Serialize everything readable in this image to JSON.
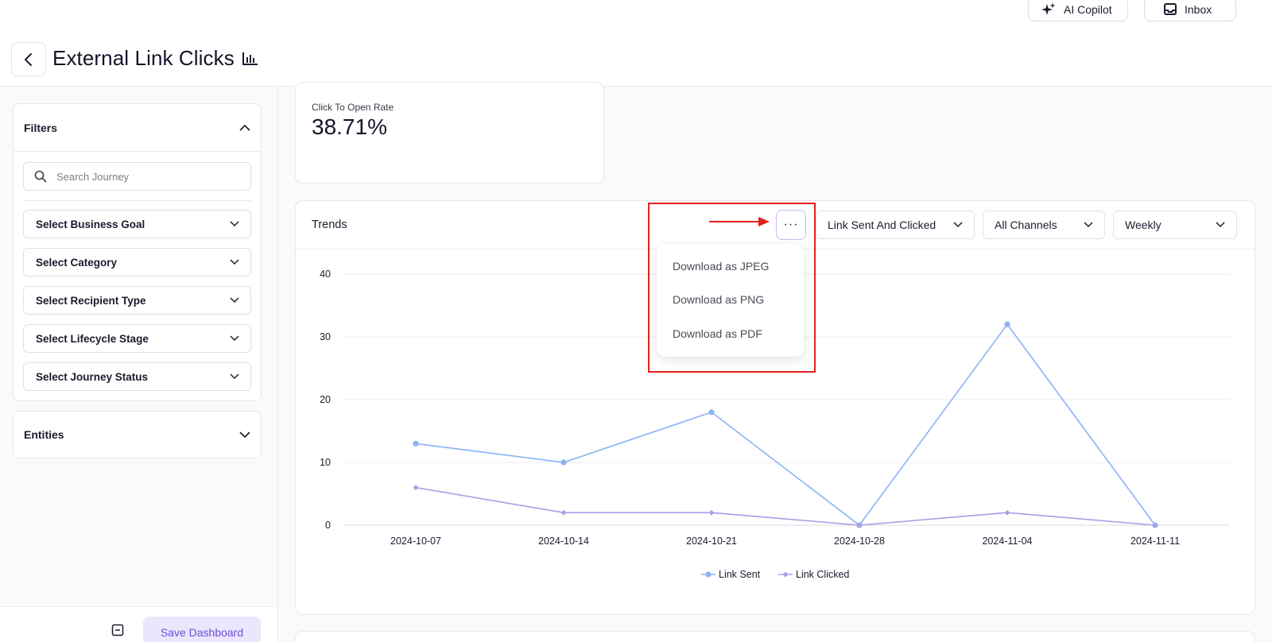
{
  "header": {
    "title": "External Link Clicks",
    "copilot_label": "AI Copilot",
    "inbox_label": "Inbox"
  },
  "sidebar": {
    "filters_title": "Filters",
    "search_placeholder": "Search Journey",
    "selects": [
      "Select Business Goal",
      "Select Category",
      "Select Recipient Type",
      "Select Lifecycle Stage",
      "Select Journey Status"
    ],
    "entities_title": "Entities",
    "save_label": "Save Dashboard"
  },
  "stat": {
    "label": "Click To Open Rate",
    "value": "38.71%"
  },
  "trends": {
    "title": "Trends",
    "more_label": "···",
    "metric_select": "Link Sent And Clicked",
    "channel_select": "All Channels",
    "frequency_select": "Weekly"
  },
  "menu": {
    "items": [
      "Download as JPEG",
      "Download as PNG",
      "Download as PDF"
    ]
  },
  "colors": {
    "accent": "#6b4fd8",
    "link_sent": "#8ab4f4",
    "link_clicked": "#b09be8",
    "highlight": "#e3221c"
  },
  "chart_data": {
    "type": "line",
    "categories": [
      "2024-10-07",
      "2024-10-14",
      "2024-10-21",
      "2024-10-28",
      "2024-11-04",
      "2024-11-11"
    ],
    "y_ticks": [
      0,
      10,
      20,
      30,
      40
    ],
    "ylim": [
      0,
      40
    ],
    "grid": true,
    "legend_position": "bottom",
    "series": [
      {
        "name": "Link Sent",
        "values": [
          13,
          10,
          18,
          0,
          32,
          0
        ],
        "color": "#8ab4f4",
        "marker": "circle"
      },
      {
        "name": "Link Clicked",
        "values": [
          6,
          2,
          2,
          0,
          2,
          0
        ],
        "color": "#b09be8",
        "marker": "diamond"
      }
    ]
  }
}
